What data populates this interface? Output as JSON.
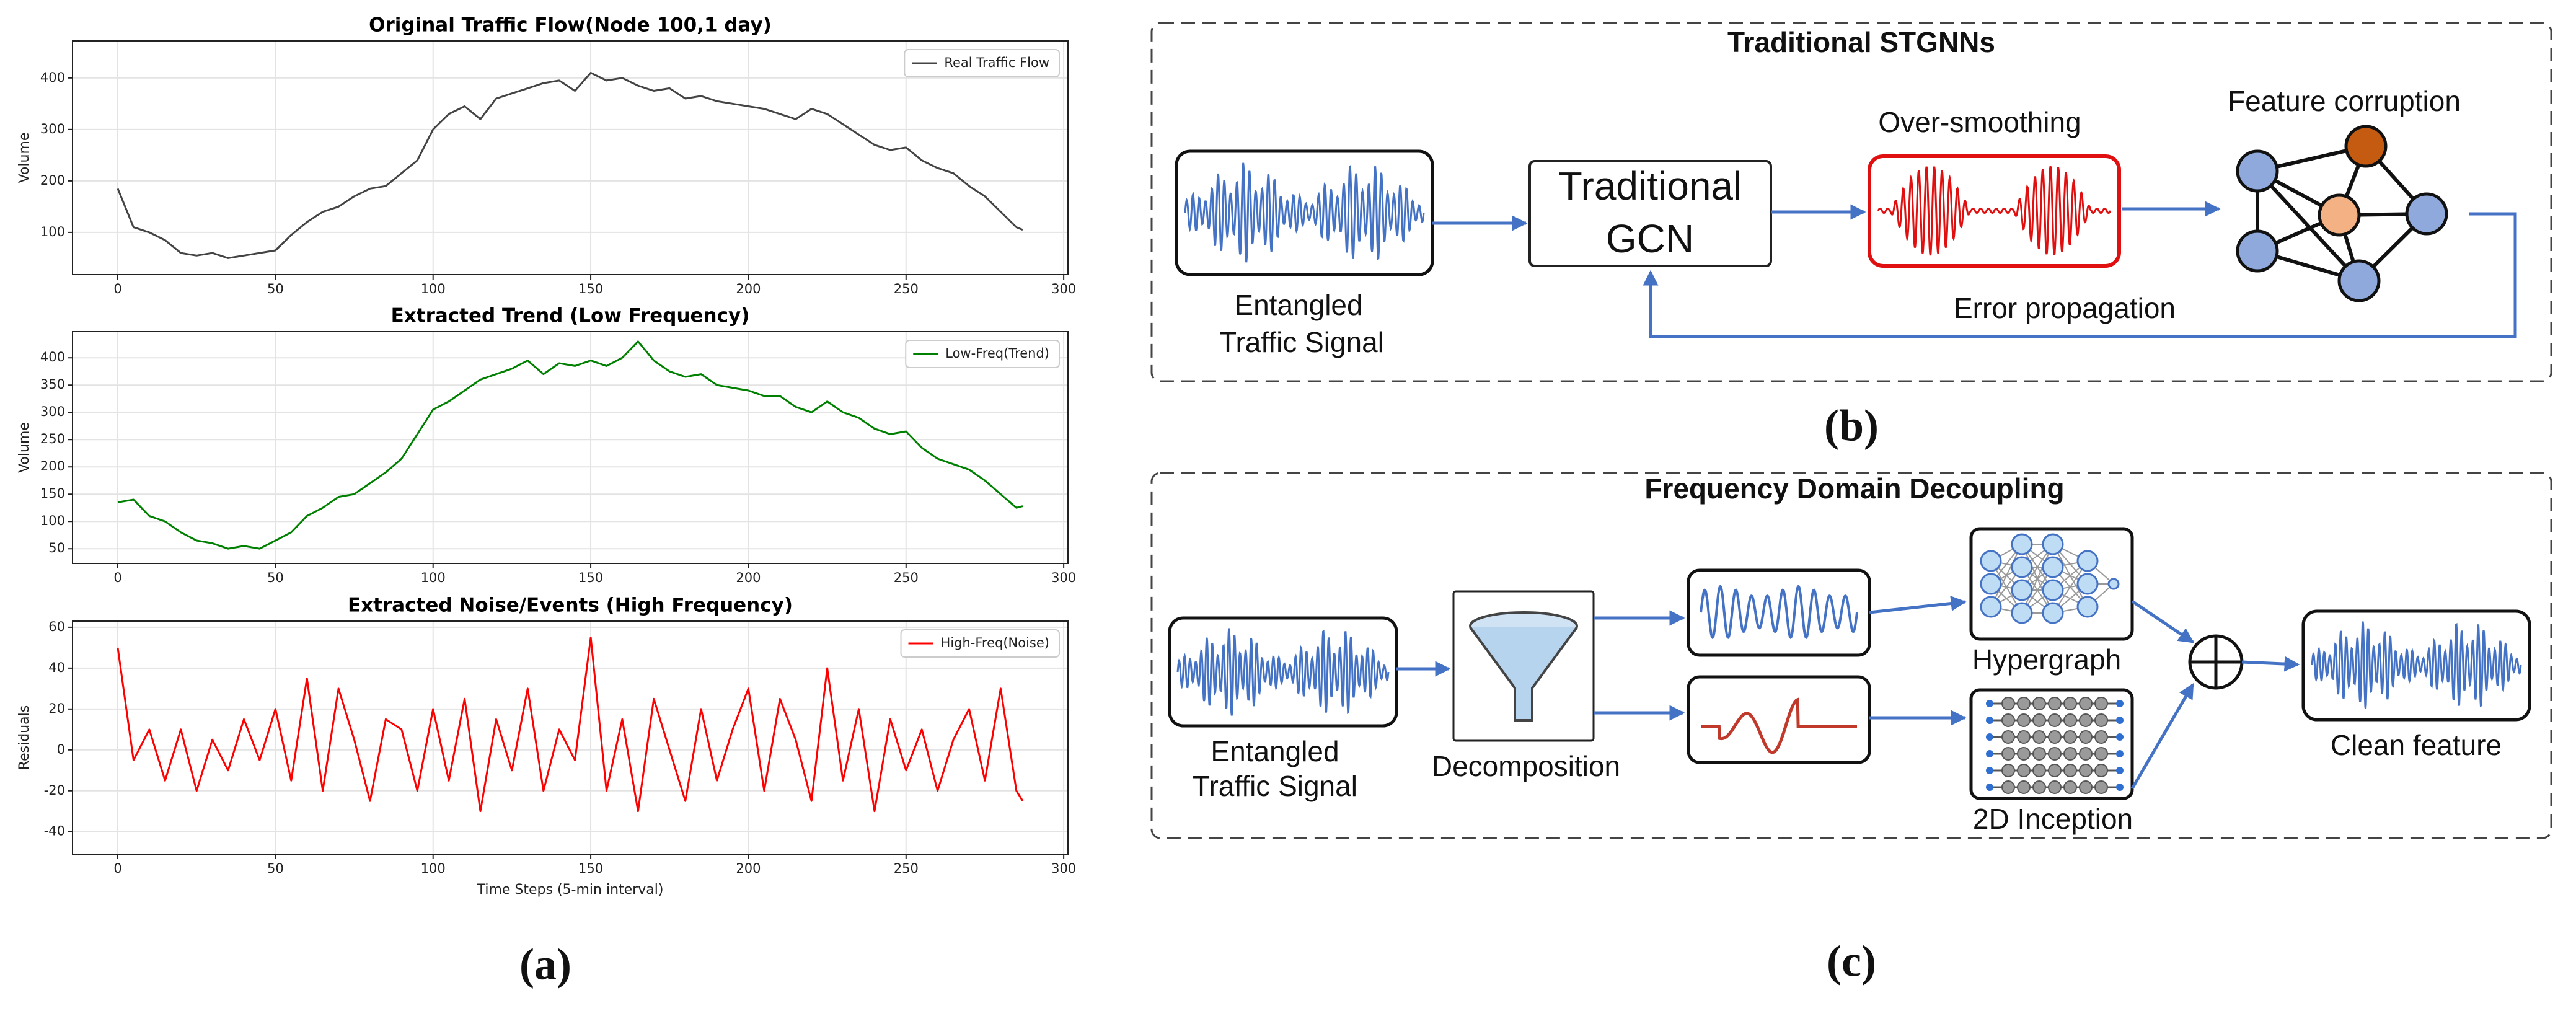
{
  "chart_data": [
    {
      "type": "line",
      "title": "Original Traffic Flow(Node 100,1 day)",
      "ylabel": "Volume",
      "x": [
        0,
        5,
        10,
        15,
        20,
        25,
        30,
        35,
        40,
        45,
        50,
        55,
        60,
        65,
        70,
        75,
        80,
        85,
        90,
        95,
        100,
        105,
        110,
        115,
        120,
        125,
        130,
        135,
        140,
        145,
        150,
        155,
        160,
        165,
        170,
        175,
        180,
        185,
        190,
        195,
        200,
        205,
        210,
        215,
        220,
        225,
        230,
        235,
        240,
        245,
        250,
        255,
        260,
        265,
        270,
        275,
        280,
        285,
        287
      ],
      "series": [
        {
          "name": "Real Traffic Flow",
          "color": "#444444",
          "values": [
            185,
            110,
            100,
            85,
            60,
            55,
            60,
            50,
            55,
            60,
            65,
            95,
            120,
            140,
            150,
            170,
            185,
            190,
            215,
            240,
            300,
            330,
            345,
            320,
            360,
            370,
            380,
            390,
            395,
            375,
            410,
            395,
            400,
            385,
            375,
            380,
            360,
            365,
            355,
            350,
            345,
            340,
            330,
            320,
            340,
            330,
            310,
            290,
            270,
            260,
            265,
            240,
            225,
            215,
            190,
            170,
            140,
            110,
            105
          ]
        }
      ],
      "xlim": [
        -14.35,
        301.35
      ],
      "ylim": [
        18,
        472
      ],
      "xticks": [
        0,
        50,
        100,
        150,
        200,
        250,
        300
      ],
      "yticks": [
        100,
        200,
        300,
        400
      ],
      "grid": true,
      "legend": "upper right"
    },
    {
      "type": "line",
      "title": "Extracted Trend (Low Frequency)",
      "ylabel": "Volume",
      "x": [
        0,
        5,
        10,
        15,
        20,
        25,
        30,
        35,
        40,
        45,
        50,
        55,
        60,
        65,
        70,
        75,
        80,
        85,
        90,
        95,
        100,
        105,
        110,
        115,
        120,
        125,
        130,
        135,
        140,
        145,
        150,
        155,
        160,
        165,
        170,
        175,
        180,
        185,
        190,
        195,
        200,
        205,
        210,
        215,
        220,
        225,
        230,
        235,
        240,
        245,
        250,
        255,
        260,
        265,
        270,
        275,
        280,
        285,
        287
      ],
      "series": [
        {
          "name": "Low-Freq(Trend)",
          "color": "#008000",
          "values": [
            135,
            140,
            110,
            100,
            80,
            65,
            60,
            50,
            55,
            50,
            65,
            80,
            110,
            125,
            145,
            150,
            170,
            190,
            215,
            260,
            305,
            320,
            340,
            360,
            370,
            380,
            395,
            370,
            390,
            385,
            395,
            385,
            400,
            430,
            395,
            375,
            365,
            370,
            350,
            345,
            340,
            330,
            330,
            310,
            300,
            320,
            300,
            290,
            270,
            260,
            265,
            235,
            215,
            205,
            195,
            175,
            150,
            125,
            128
          ]
        }
      ],
      "xlim": [
        -14.35,
        301.35
      ],
      "ylim": [
        23,
        448
      ],
      "xticks": [
        0,
        50,
        100,
        150,
        200,
        250,
        300
      ],
      "yticks": [
        50,
        100,
        150,
        200,
        250,
        300,
        350,
        400
      ],
      "grid": true,
      "legend": "upper right"
    },
    {
      "type": "line",
      "title": "Extracted Noise/Events (High Frequency)",
      "ylabel": "Residuals",
      "xlabel": "Time Steps (5-min interval)",
      "x": [
        0,
        5,
        10,
        15,
        20,
        25,
        30,
        35,
        40,
        45,
        50,
        55,
        60,
        65,
        70,
        75,
        80,
        85,
        90,
        95,
        100,
        105,
        110,
        115,
        120,
        125,
        130,
        135,
        140,
        145,
        150,
        155,
        160,
        165,
        170,
        175,
        180,
        185,
        190,
        195,
        200,
        205,
        210,
        215,
        220,
        225,
        230,
        235,
        240,
        245,
        250,
        255,
        260,
        265,
        270,
        275,
        280,
        285,
        287
      ],
      "series": [
        {
          "name": "High-Freq(Noise)",
          "color": "#ff0000",
          "values": [
            50,
            -5,
            10,
            -15,
            10,
            -20,
            5,
            -10,
            15,
            -5,
            20,
            -15,
            35,
            -20,
            30,
            5,
            -25,
            15,
            10,
            -20,
            20,
            -15,
            25,
            -30,
            15,
            -10,
            30,
            -20,
            10,
            -5,
            55,
            -20,
            15,
            -30,
            25,
            0,
            -25,
            20,
            -15,
            10,
            30,
            -20,
            25,
            5,
            -25,
            40,
            -15,
            20,
            -30,
            15,
            -10,
            10,
            -20,
            5,
            20,
            -15,
            30,
            -20,
            -25
          ]
        }
      ],
      "xlim": [
        -14.35,
        301.35
      ],
      "ylim": [
        -51,
        63
      ],
      "xticks": [
        0,
        50,
        100,
        150,
        200,
        250,
        300
      ],
      "yticks": [
        -40,
        -20,
        0,
        20,
        40,
        60
      ],
      "grid": true,
      "legend": "upper right"
    }
  ],
  "panel_a_label": "(a)",
  "panel_b": {
    "title": "Traditional STGNNs",
    "input_label": [
      "Entangled",
      "Traffic Signal"
    ],
    "gcn_label": [
      "Traditional",
      "GCN"
    ],
    "smoothing_label": "Over-smoothing",
    "corruption_label": "Feature corruption",
    "feedback_label": "Error propagation",
    "panel_label": "(b)"
  },
  "panel_c": {
    "title": "Frequency Domain Decoupling",
    "input_label": [
      "Entangled",
      "Traffic Signal"
    ],
    "decomposition_label": "Decomposition",
    "hypergraph_label": "Hypergraph",
    "inception_label": "2D Inception",
    "output_label": "Clean feature",
    "panel_label": "(c)"
  }
}
